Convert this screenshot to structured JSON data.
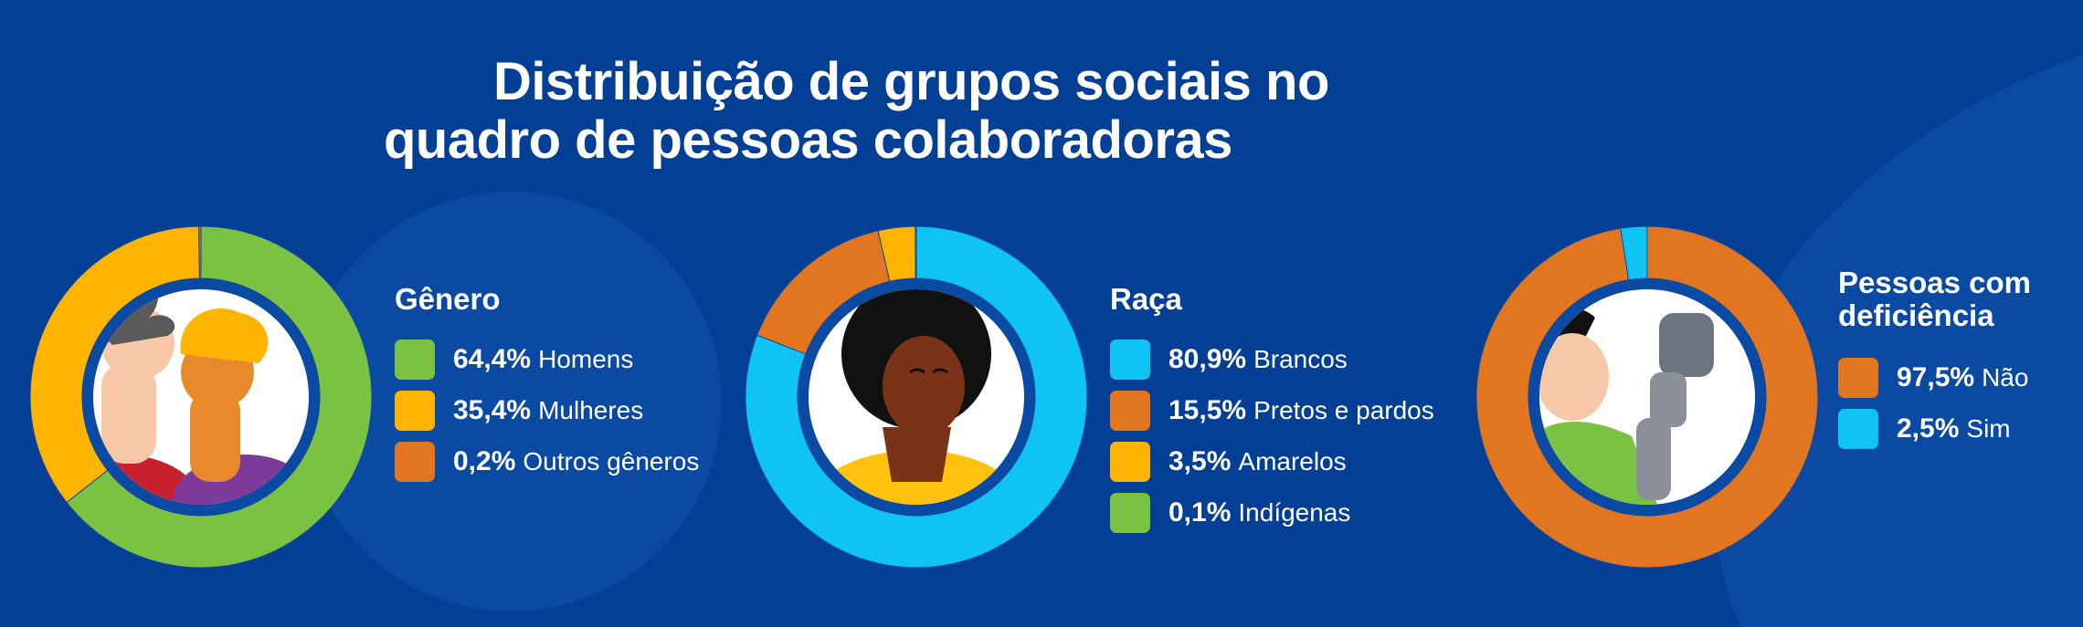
{
  "title": {
    "line1": "Distribuição de grupos sociais no",
    "line2": "quadro de pessoas colaboradoras"
  },
  "colors": {
    "background": "#033f95",
    "green": "#7cc242",
    "yellow": "#ffb400",
    "orange": "#e27620",
    "cyan": "#0fc4f5",
    "ring_inner": "#0a4aa3",
    "white": "#ffffff"
  },
  "icons": [
    "people-illustration",
    "person-curly-hair-illustration",
    "person-prosthetic-arm-illustration"
  ],
  "chart_data": [
    {
      "type": "pie",
      "title": "Gênero",
      "slices": [
        {
          "value": 64.4,
          "value_label": "64,4%",
          "label": "Homens",
          "color": "#7cc242"
        },
        {
          "value": 35.4,
          "value_label": "35,4%",
          "label": "Mulheres",
          "color": "#ffb400"
        },
        {
          "value": 0.2,
          "value_label": "0,2%",
          "label": "Outros gêneros",
          "color": "#e27620"
        }
      ]
    },
    {
      "type": "pie",
      "title": "Raça",
      "slices": [
        {
          "value": 80.9,
          "value_label": "80,9%",
          "label": "Brancos",
          "color": "#0fc4f5"
        },
        {
          "value": 15.5,
          "value_label": "15,5%",
          "label": "Pretos e pardos",
          "color": "#e27620"
        },
        {
          "value": 3.5,
          "value_label": "3,5%",
          "label": "Amarelos",
          "color": "#ffb400"
        },
        {
          "value": 0.1,
          "value_label": "0,1%",
          "label": "Indígenas",
          "color": "#7cc242"
        }
      ]
    },
    {
      "type": "pie",
      "title": "Pessoas com deficiência",
      "title_lines": [
        "Pessoas com",
        "deficiência"
      ],
      "slices": [
        {
          "value": 97.5,
          "value_label": "97,5%",
          "label": "Não",
          "color": "#e27620"
        },
        {
          "value": 2.5,
          "value_label": "2,5%",
          "label": "Sim",
          "color": "#0fc4f5"
        }
      ]
    }
  ]
}
